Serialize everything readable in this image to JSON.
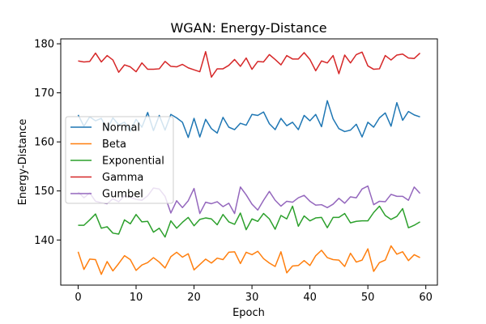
{
  "chart_data": {
    "type": "line",
    "title": "WGAN: Energy-Distance",
    "xlabel": "Epoch",
    "ylabel": "Energy-Distance",
    "xlim": [
      -3,
      62
    ],
    "ylim": [
      130.8,
      181.0
    ],
    "xticks": [
      0,
      10,
      20,
      30,
      40,
      50,
      60
    ],
    "yticks": [
      140,
      150,
      160,
      170,
      180
    ],
    "grid": false,
    "legend_position": "center-left",
    "x": [
      0,
      1,
      2,
      3,
      4,
      5,
      6,
      7,
      8,
      9,
      10,
      11,
      12,
      13,
      14,
      15,
      16,
      17,
      18,
      19,
      20,
      21,
      22,
      23,
      24,
      25,
      26,
      27,
      28,
      29,
      30,
      31,
      32,
      33,
      34,
      35,
      36,
      37,
      38,
      39,
      40,
      41,
      42,
      43,
      44,
      45,
      46,
      47,
      48,
      49,
      50,
      51,
      52,
      53,
      54,
      55,
      56,
      57,
      58,
      59
    ],
    "series": [
      {
        "name": "Normal",
        "color": "#1f77b4",
        "values": [
          165.5,
          163.2,
          165.1,
          164.3,
          164.8,
          162.5,
          164.9,
          163.5,
          164.0,
          162.2,
          164.6,
          163.0,
          166.0,
          162.3,
          165.4,
          162.4,
          165.6,
          164.9,
          164.0,
          160.9,
          164.8,
          161.0,
          164.6,
          162.7,
          161.8,
          165.0,
          163.0,
          162.5,
          163.8,
          163.4,
          165.6,
          165.4,
          166.1,
          163.7,
          162.5,
          164.8,
          163.3,
          164.0,
          162.5,
          165.4,
          164.3,
          165.6,
          163.1,
          168.4,
          164.7,
          162.7,
          162.1,
          162.4,
          163.6,
          161.0,
          164.0,
          163.0,
          164.9,
          165.9,
          163.2,
          168.0,
          164.4,
          166.2,
          165.5,
          165.1
        ]
      },
      {
        "name": "Beta",
        "color": "#ff7f0e",
        "values": [
          137.6,
          134.0,
          136.1,
          136.0,
          133.0,
          135.6,
          133.7,
          135.2,
          136.8,
          136.0,
          133.8,
          134.9,
          135.4,
          136.4,
          135.5,
          134.3,
          136.6,
          137.5,
          136.5,
          137.2,
          133.9,
          135.0,
          136.1,
          135.3,
          136.3,
          136.0,
          137.5,
          137.6,
          135.2,
          137.5,
          137.0,
          137.7,
          136.2,
          135.3,
          134.6,
          137.6,
          133.3,
          134.7,
          134.8,
          135.8,
          134.8,
          136.8,
          137.9,
          136.4,
          136.0,
          135.9,
          134.6,
          137.3,
          135.5,
          135.9,
          138.2,
          133.6,
          135.4,
          135.9,
          138.8,
          137.1,
          137.6,
          135.8,
          137.0,
          136.4
        ]
      },
      {
        "name": "Exponential",
        "color": "#2ca02c",
        "values": [
          143.0,
          143.0,
          144.1,
          145.3,
          142.4,
          142.7,
          141.4,
          141.2,
          144.1,
          143.3,
          145.2,
          143.7,
          143.8,
          141.6,
          142.4,
          140.6,
          143.9,
          142.4,
          143.6,
          144.6,
          142.9,
          144.2,
          144.5,
          144.3,
          143.1,
          145.2,
          143.7,
          143.2,
          145.5,
          142.1,
          144.3,
          143.8,
          145.4,
          144.3,
          142.2,
          145.0,
          144.3,
          146.9,
          142.8,
          144.9,
          143.9,
          144.5,
          144.6,
          142.5,
          144.6,
          144.6,
          145.4,
          143.5,
          143.8,
          143.9,
          143.9,
          145.6,
          146.9,
          145.0,
          144.2,
          144.8,
          146.4,
          142.5,
          143.0,
          143.7
        ]
      },
      {
        "name": "Gamma",
        "color": "#d62728",
        "values": [
          176.5,
          176.3,
          176.4,
          178.1,
          176.3,
          177.6,
          176.7,
          174.2,
          175.7,
          175.3,
          174.3,
          176.1,
          174.8,
          174.8,
          174.9,
          176.4,
          175.4,
          175.3,
          175.8,
          175.1,
          174.7,
          174.3,
          178.4,
          173.2,
          174.9,
          174.9,
          175.6,
          176.8,
          175.4,
          177.1,
          174.8,
          176.4,
          176.3,
          177.8,
          176.8,
          175.7,
          177.6,
          176.9,
          176.9,
          178.2,
          176.8,
          174.5,
          176.5,
          176.1,
          177.6,
          173.9,
          177.7,
          176.1,
          177.8,
          178.3,
          175.5,
          174.8,
          174.9,
          177.6,
          176.7,
          177.7,
          177.9,
          177.1,
          177.0,
          178.1
        ]
      },
      {
        "name": "Gumbel",
        "color": "#9467bd",
        "values": [
          149.8,
          148.6,
          149.6,
          147.9,
          147.6,
          147.4,
          148.4,
          147.8,
          149.0,
          148.7,
          148.3,
          148.1,
          149.0,
          150.6,
          150.4,
          148.9,
          145.5,
          148.0,
          146.6,
          148.0,
          150.5,
          145.4,
          147.7,
          147.4,
          147.8,
          146.8,
          147.5,
          145.4,
          150.8,
          149.2,
          147.3,
          146.1,
          148.1,
          149.9,
          148.1,
          146.9,
          147.9,
          147.7,
          148.6,
          149.1,
          147.9,
          147.1,
          147.2,
          146.6,
          147.3,
          148.5,
          147.5,
          148.8,
          148.6,
          150.4,
          151.0,
          147.2,
          147.9,
          147.8,
          149.3,
          148.9,
          148.9,
          148.1,
          150.8,
          149.5
        ]
      }
    ]
  }
}
